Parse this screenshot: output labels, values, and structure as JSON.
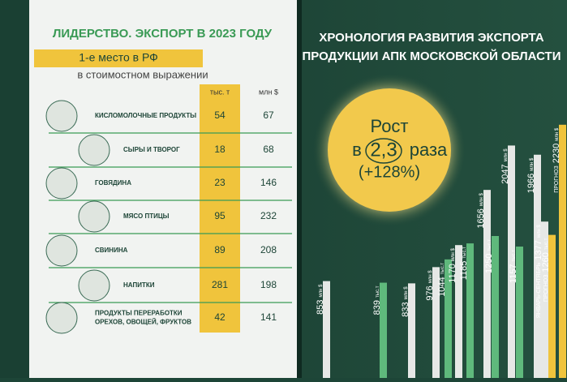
{
  "left": {
    "title": "ЛИДЕРСТВО. ЭКСПОРТ В 2023 ГОДУ",
    "badge": "1-е место в РФ",
    "subtitle": "в стоимостном выражении",
    "columns": [
      "тыс. т",
      "млн $"
    ],
    "rows": [
      {
        "name": [
          "КИСЛОМОЛОЧНЫЕ ПРОДУКТЫ"
        ],
        "tons": 54,
        "usd": 67
      },
      {
        "name": [
          "СЫРЫ И ТВОРОГ"
        ],
        "tons": 18,
        "usd": 68
      },
      {
        "name": [
          "ГОВЯДИНА"
        ],
        "tons": 23,
        "usd": 146
      },
      {
        "name": [
          "МЯСО ПТИЦЫ"
        ],
        "tons": 95,
        "usd": 232
      },
      {
        "name": [
          "СВИНИНА"
        ],
        "tons": 89,
        "usd": 208
      },
      {
        "name": [
          "НАПИТКИ"
        ],
        "tons": 281,
        "usd": 198
      },
      {
        "name": [
          "ПРОДУКТЫ ПЕРЕРАБОТКИ",
          "ОРЕХОВ, ОВОЩЕЙ, ФРУКТОВ"
        ],
        "tons": 42,
        "usd": 141
      }
    ]
  },
  "right": {
    "title": [
      "ХРОНОЛОГИЯ РАЗВИТИЯ ЭКСПОРТА",
      "ПРОДУКЦИИ АПК МОСКОВСКОЙ ОБЛАСТИ"
    ],
    "growth": {
      "line1": "Рост",
      "prefix": "в",
      "factor": "2,3",
      "suffix": "раза",
      "percent": "(+128%)"
    },
    "bars": [
      {
        "value": 853,
        "unit": "млн $",
        "color": "#e6e8e6"
      },
      {
        "value": 839,
        "unit": "тыс.т",
        "color": "#5fb97c"
      },
      {
        "value": 833,
        "unit": "млн $",
        "color": "#e6e8e6"
      },
      {
        "value": 976,
        "unit": "млн $",
        "color": "#e6e8e6"
      },
      {
        "value": 1044,
        "unit": "тыс.т",
        "color": "#5fb97c"
      },
      {
        "value": 1170,
        "unit": "млн $",
        "color": "#e6e8e6"
      },
      {
        "value": 1185,
        "unit": "тыс.т",
        "color": "#5fb97c"
      },
      {
        "value": 1656,
        "unit": "млн $",
        "color": "#e6e8e6"
      },
      {
        "value": 1250,
        "unit": "тыс.т",
        "color": "#5fb97c"
      },
      {
        "value": 2047,
        "unit": "млн $",
        "color": "#e6e8e6"
      },
      {
        "value": 1157,
        "unit": "тыс.т",
        "color": "#5fb97c"
      },
      {
        "value": 1966,
        "unit": "млн $",
        "color": "#e6e8e6"
      },
      {
        "value": 1377,
        "unit": "млн $",
        "note": "ЯНВАРЬ-СЕНТЯБРЬ",
        "color": "#e6e8e6"
      },
      {
        "value": 1260,
        "unit": "тыс.т",
        "note": "ПРОГНОЗ",
        "color": "#f0c43c"
      },
      {
        "value": 2230,
        "unit": "млн $",
        "note": "ПРОГНОЗ",
        "color": "#f0c43c"
      }
    ]
  }
}
